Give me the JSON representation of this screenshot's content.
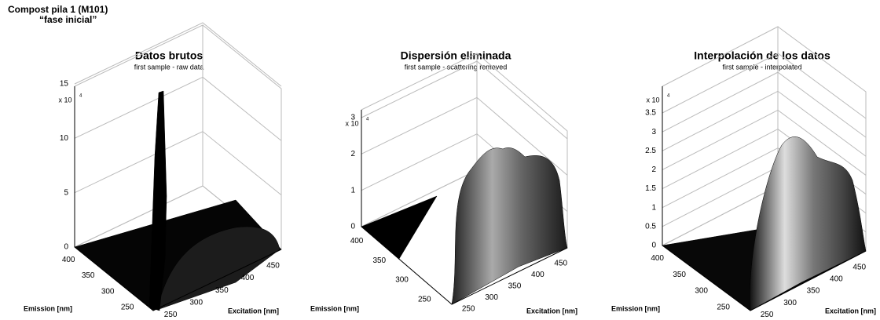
{
  "header": {
    "title": "Compost  pila 1  (M101)",
    "subtitle": "“fase inicial”"
  },
  "panels": [
    {
      "title": "Datos brutos",
      "subtitle": "first sample - raw data",
      "z_scale": "x 10",
      "z_exponent": "4",
      "z_ticks": [
        "0",
        "5",
        "10",
        "15"
      ],
      "emission_ticks": [
        "250",
        "300",
        "350",
        "400"
      ],
      "excitation_ticks": [
        "250",
        "300",
        "350",
        "400",
        "450"
      ],
      "emission_label": "Emission [nm]",
      "excitation_label": "Excitation [nm]"
    },
    {
      "title": "Dispersión eliminada",
      "subtitle": "first sample - scattering removed",
      "z_scale": "x 10",
      "z_exponent": "4",
      "z_ticks": [
        "0",
        "1",
        "2",
        "3"
      ],
      "emission_ticks": [
        "250",
        "300",
        "350",
        "400"
      ],
      "excitation_ticks": [
        "250",
        "300",
        "350",
        "400",
        "450"
      ],
      "emission_label": "Emission [nm]",
      "excitation_label": "Excitation [nm]"
    },
    {
      "title": "Interpolación de los datos",
      "subtitle": "first sample - interpolated",
      "z_scale": "x 10",
      "z_exponent": "4",
      "z_ticks": [
        "0",
        "0.5",
        "1",
        "1.5",
        "2",
        "2.5",
        "3",
        "3.5"
      ],
      "emission_ticks": [
        "250",
        "300",
        "350",
        "400"
      ],
      "excitation_ticks": [
        "250",
        "300",
        "350",
        "400",
        "450"
      ],
      "emission_label": "Emission [nm]",
      "excitation_label": "Excitation [nm]"
    }
  ]
}
